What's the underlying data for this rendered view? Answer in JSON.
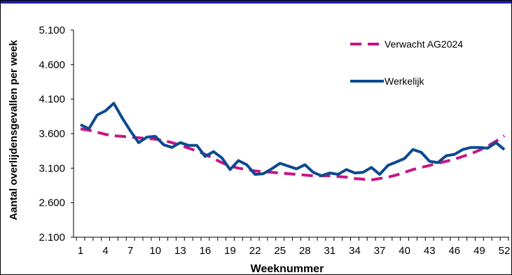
{
  "chart_data": {
    "type": "line",
    "xlabel": "Weeknummer",
    "ylabel": "Aantal overlijdensgevallen per week",
    "ylim": [
      2100,
      5100
    ],
    "yticks": [
      2100,
      2600,
      3100,
      3600,
      4100,
      4600,
      5100
    ],
    "ytick_labels": [
      "2.100",
      "2.600",
      "3.100",
      "3.600",
      "4.100",
      "4.600",
      "5.100"
    ],
    "xlim": [
      1,
      52
    ],
    "xticks": [
      1,
      4,
      7,
      10,
      13,
      16,
      19,
      22,
      25,
      28,
      31,
      34,
      37,
      40,
      43,
      46,
      49,
      52
    ],
    "xtick_labels": [
      "1",
      "4",
      "7",
      "10",
      "13",
      "16",
      "19",
      "22",
      "25",
      "28",
      "31",
      "34",
      "37",
      "40",
      "43",
      "46",
      "49",
      "52"
    ],
    "legend_position": "top-right",
    "grid": false,
    "series": [
      {
        "name": "Verwacht AG2024",
        "color": "#c71585",
        "style": "dashed",
        "x": [
          1,
          2,
          3,
          4,
          5,
          6,
          7,
          8,
          9,
          10,
          11,
          12,
          13,
          14,
          15,
          16,
          17,
          18,
          19,
          20,
          21,
          22,
          23,
          24,
          25,
          26,
          27,
          28,
          29,
          30,
          31,
          32,
          33,
          34,
          35,
          36,
          37,
          38,
          39,
          40,
          41,
          42,
          43,
          44,
          45,
          46,
          47,
          48,
          49,
          50,
          51,
          52
        ],
        "values": [
          3670,
          3650,
          3620,
          3590,
          3570,
          3560,
          3550,
          3540,
          3530,
          3520,
          3500,
          3470,
          3430,
          3390,
          3350,
          3300,
          3240,
          3180,
          3130,
          3100,
          3080,
          3060,
          3050,
          3040,
          3030,
          3020,
          3010,
          3000,
          2990,
          2990,
          2990,
          2980,
          2970,
          2950,
          2940,
          2930,
          2950,
          2970,
          3000,
          3040,
          3080,
          3110,
          3140,
          3170,
          3200,
          3230,
          3270,
          3310,
          3360,
          3420,
          3490,
          3570
        ]
      },
      {
        "name": "Werkelijk",
        "color": "#0b4a8f",
        "style": "solid",
        "x": [
          1,
          2,
          3,
          4,
          5,
          6,
          7,
          8,
          9,
          10,
          11,
          12,
          13,
          14,
          15,
          16,
          17,
          18,
          19,
          20,
          21,
          22,
          23,
          24,
          25,
          26,
          27,
          28,
          29,
          30,
          31,
          32,
          33,
          34,
          35,
          36,
          37,
          38,
          39,
          40,
          41,
          42,
          43,
          44,
          45,
          46,
          47,
          48,
          49,
          50,
          51,
          52
        ],
        "values": [
          3730,
          3670,
          3870,
          3930,
          4040,
          3830,
          3640,
          3470,
          3550,
          3560,
          3440,
          3400,
          3470,
          3430,
          3430,
          3270,
          3340,
          3250,
          3080,
          3210,
          3150,
          3010,
          3020,
          3090,
          3170,
          3130,
          3090,
          3150,
          3040,
          2990,
          3030,
          3010,
          3080,
          3030,
          3040,
          3110,
          3010,
          3140,
          3190,
          3240,
          3370,
          3330,
          3200,
          3180,
          3280,
          3300,
          3370,
          3400,
          3400,
          3390,
          3470,
          3370
        ]
      }
    ]
  }
}
